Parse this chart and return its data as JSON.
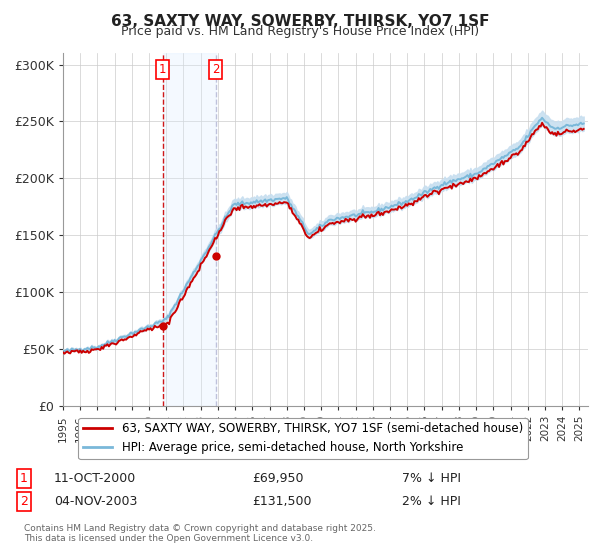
{
  "title": "63, SAXTY WAY, SOWERBY, THIRSK, YO7 1SF",
  "subtitle": "Price paid vs. HM Land Registry's House Price Index (HPI)",
  "legend_line1": "63, SAXTY WAY, SOWERBY, THIRSK, YO7 1SF (semi-detached house)",
  "legend_line2": "HPI: Average price, semi-detached house, North Yorkshire",
  "transaction1_date": "11-OCT-2000",
  "transaction1_price": 69950,
  "transaction1_label": "7% ↓ HPI",
  "transaction2_date": "04-NOV-2003",
  "transaction2_price": 131500,
  "transaction2_label": "2% ↓ HPI",
  "footnote": "Contains HM Land Registry data © Crown copyright and database right 2025.\nThis data is licensed under the Open Government Licence v3.0.",
  "hpi_color": "#7ab8d9",
  "hpi_band_color": "#c8dff0",
  "price_color": "#cc0000",
  "marker_color": "#cc0000",
  "vline1_color": "#cc0000",
  "vline2_color": "#aaaacc",
  "highlight_color": "#ddeeff",
  "grid_color": "#cccccc",
  "background_color": "#ffffff",
  "ylim": [
    0,
    310000
  ],
  "yticks": [
    0,
    50000,
    100000,
    150000,
    200000,
    250000,
    300000
  ],
  "ytick_labels": [
    "£0",
    "£50K",
    "£100K",
    "£150K",
    "£200K",
    "£250K",
    "£300K"
  ],
  "xlim_start": 1995.0,
  "xlim_end": 2025.5,
  "xtick_years": [
    1995,
    1996,
    1997,
    1998,
    1999,
    2000,
    2001,
    2002,
    2003,
    2004,
    2005,
    2006,
    2007,
    2008,
    2009,
    2010,
    2011,
    2012,
    2013,
    2014,
    2015,
    2016,
    2017,
    2018,
    2019,
    2020,
    2021,
    2022,
    2023,
    2024,
    2025
  ]
}
